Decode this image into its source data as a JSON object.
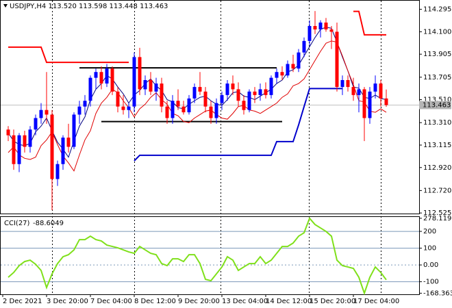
{
  "chart_data": [
    {
      "type": "candlestick",
      "title": "USDJPY,H4  113.520 113.598 113.448 113.463",
      "categories": [
        "2 Dec 2021",
        null,
        null,
        null,
        null,
        null,
        null,
        null,
        "3 Dec 20:00",
        null,
        null,
        null,
        null,
        null,
        null,
        null,
        "7 Dec 04:00",
        null,
        null,
        null,
        null,
        null,
        null,
        null,
        "8 Dec 12:00",
        null,
        null,
        null,
        null,
        null,
        null,
        null,
        "9 Dec 20:00",
        null,
        null,
        null,
        null,
        null,
        null,
        null,
        "13 Dec 04:00",
        null,
        null,
        null,
        null,
        null,
        null,
        null,
        "14 Dec 12:00",
        null,
        null,
        null,
        null,
        null,
        null,
        null,
        "15 Dec 20:00",
        null,
        null,
        null,
        null,
        null,
        null,
        null,
        "17 Dec 04:00",
        null,
        null,
        null,
        null,
        null
      ],
      "open": [
        113.25,
        113.2,
        112.95,
        113.2,
        113.1,
        113.25,
        113.35,
        113.42,
        113.38,
        112.82,
        112.95,
        113.18,
        113.1,
        113.38,
        113.45,
        113.5,
        113.7,
        113.75,
        113.65,
        113.78,
        113.58,
        113.45,
        113.42,
        113.45,
        113.88,
        113.6,
        113.68,
        113.58,
        113.65,
        113.45,
        113.35,
        113.5,
        113.45,
        113.4,
        113.52,
        113.62,
        113.58,
        113.45,
        113.35,
        113.48,
        113.55,
        113.65,
        113.6,
        113.5,
        113.42,
        113.58,
        113.55,
        113.6,
        113.55,
        113.7,
        113.75,
        113.72,
        113.82,
        113.78,
        113.92,
        114.02,
        114.15,
        114.12,
        114.18,
        114.12,
        114.1,
        113.62,
        113.68,
        113.62,
        113.55,
        113.6,
        113.35,
        113.58,
        113.65,
        113.52
      ],
      "high": [
        113.28,
        113.25,
        113.22,
        113.24,
        113.28,
        113.38,
        113.48,
        113.75,
        113.42,
        112.98,
        113.2,
        113.3,
        113.4,
        113.5,
        113.55,
        113.72,
        113.78,
        113.8,
        113.82,
        113.8,
        113.62,
        113.55,
        113.48,
        113.92,
        113.96,
        113.72,
        113.75,
        113.7,
        113.7,
        113.5,
        113.55,
        113.6,
        113.5,
        113.55,
        113.65,
        113.75,
        113.62,
        113.5,
        113.52,
        113.58,
        113.68,
        113.72,
        113.66,
        113.55,
        113.6,
        113.62,
        113.65,
        113.66,
        113.72,
        113.78,
        113.8,
        113.85,
        113.9,
        113.95,
        114.05,
        114.2,
        114.28,
        114.2,
        114.22,
        114.15,
        114.18,
        113.72,
        113.72,
        113.7,
        113.65,
        113.62,
        113.62,
        113.72,
        113.68,
        113.598
      ],
      "low": [
        113.15,
        112.9,
        112.88,
        113.05,
        113.05,
        113.2,
        113.3,
        113.3,
        112.55,
        112.76,
        112.9,
        113.05,
        113.08,
        113.3,
        113.38,
        113.45,
        113.6,
        113.6,
        113.62,
        113.55,
        113.4,
        113.38,
        113.35,
        113.4,
        113.55,
        113.55,
        113.55,
        113.5,
        113.4,
        113.3,
        113.3,
        113.42,
        113.38,
        113.38,
        113.48,
        113.55,
        113.4,
        113.3,
        113.3,
        113.42,
        113.5,
        113.55,
        113.45,
        113.38,
        113.4,
        113.48,
        113.5,
        113.52,
        113.52,
        113.65,
        113.68,
        113.7,
        113.75,
        113.75,
        113.88,
        113.98,
        114.08,
        114.05,
        114.1,
        113.95,
        113.58,
        113.55,
        113.58,
        113.5,
        113.4,
        113.15,
        113.3,
        113.52,
        113.45,
        113.448
      ],
      "close": [
        113.2,
        112.95,
        113.2,
        113.1,
        113.25,
        113.35,
        113.42,
        113.38,
        112.82,
        112.95,
        113.18,
        113.1,
        113.38,
        113.45,
        113.5,
        113.7,
        113.75,
        113.65,
        113.78,
        113.58,
        113.45,
        113.42,
        113.45,
        113.88,
        113.6,
        113.68,
        113.58,
        113.65,
        113.45,
        113.35,
        113.5,
        113.45,
        113.4,
        113.52,
        113.62,
        113.58,
        113.45,
        113.35,
        113.48,
        113.55,
        113.65,
        113.6,
        113.5,
        113.42,
        113.58,
        113.55,
        113.6,
        113.55,
        113.7,
        113.75,
        113.72,
        113.82,
        113.78,
        113.92,
        114.02,
        114.15,
        114.12,
        114.18,
        114.12,
        114.1,
        113.62,
        113.68,
        113.62,
        113.55,
        113.6,
        113.35,
        113.58,
        113.65,
        113.52,
        113.463
      ],
      "up_color": "#0000ff",
      "down_color": "#ff0000",
      "series": [
        {
          "color": "#ff0000",
          "width": 2,
          "values": [
            113.966,
            113.966,
            113.966,
            113.966,
            113.966,
            113.966,
            113.966,
            113.834,
            113.834,
            113.834,
            113.834,
            113.834,
            113.834,
            113.834,
            113.834,
            113.834,
            113.834,
            113.834,
            113.834,
            113.834,
            113.834,
            113.834,
            113.834,
            null,
            null,
            null,
            null,
            null,
            null,
            null,
            null,
            null,
            null,
            null,
            null,
            null,
            null,
            null,
            null,
            null,
            null,
            null,
            null,
            null,
            null,
            null,
            null,
            null,
            null,
            null,
            null,
            null,
            null,
            null,
            null,
            null,
            null,
            null,
            null,
            null,
            null,
            null,
            null,
            114.277,
            114.277,
            114.073,
            114.073,
            114.073,
            114.073,
            114.073
          ]
        },
        {
          "color": "#0000cc",
          "width": 2,
          "values": [
            null,
            null,
            null,
            null,
            null,
            null,
            null,
            null,
            null,
            null,
            null,
            null,
            null,
            null,
            null,
            null,
            null,
            null,
            null,
            null,
            null,
            null,
            null,
            112.978,
            113.026,
            113.026,
            113.026,
            113.026,
            113.026,
            113.026,
            113.026,
            113.026,
            113.026,
            113.026,
            113.026,
            113.026,
            113.026,
            113.026,
            113.026,
            113.026,
            113.026,
            113.026,
            113.026,
            113.026,
            113.026,
            113.026,
            113.026,
            113.026,
            113.026,
            113.145,
            113.145,
            113.145,
            113.145,
            113.29,
            113.45,
            113.606,
            113.606,
            113.606,
            113.606,
            113.606,
            113.606,
            113.606,
            null,
            null,
            null,
            null,
            null,
            null,
            null,
            null
          ]
        },
        {
          "color": "#000080",
          "width": 1,
          "values": [
            113.22,
            113.15,
            113.12,
            113.11,
            113.13,
            113.23,
            113.28,
            113.35,
            113.24,
            113.14,
            113.08,
            113.01,
            113.15,
            113.28,
            113.36,
            113.51,
            113.6,
            113.65,
            113.72,
            113.69,
            113.62,
            113.56,
            113.48,
            113.55,
            113.59,
            113.65,
            113.69,
            113.63,
            113.59,
            113.51,
            113.49,
            113.44,
            113.43,
            113.47,
            113.5,
            113.53,
            113.54,
            113.5,
            113.47,
            113.46,
            113.51,
            113.57,
            113.58,
            113.54,
            113.53,
            113.51,
            113.54,
            113.57,
            113.6,
            113.65,
            113.68,
            113.75,
            113.77,
            113.81,
            113.89,
            113.97,
            114.05,
            114.12,
            114.14,
            114.13,
            114.01,
            113.88,
            113.76,
            113.62,
            113.61,
            113.53,
            113.52,
            113.55,
            113.52,
            113.51
          ]
        },
        {
          "color": "#e00000",
          "width": 1,
          "values": [
            113.05,
            113.1,
            113.03,
            113.0,
            112.99,
            113.01,
            113.11,
            113.16,
            113.23,
            113.12,
            113.02,
            112.96,
            112.89,
            113.03,
            113.16,
            113.24,
            113.39,
            113.48,
            113.53,
            113.6,
            113.57,
            113.5,
            113.44,
            113.36,
            113.43,
            113.47,
            113.53,
            113.57,
            113.51,
            113.47,
            113.39,
            113.37,
            113.32,
            113.31,
            113.35,
            113.38,
            113.41,
            113.42,
            113.38,
            113.35,
            113.34,
            113.39,
            113.45,
            113.46,
            113.42,
            113.41,
            113.39,
            113.42,
            113.45,
            113.48,
            113.53,
            113.56,
            113.63,
            113.65,
            113.69,
            113.77,
            113.85,
            113.93,
            114.0,
            114.02,
            114.01,
            113.89,
            113.76,
            113.64,
            113.5,
            113.49,
            113.41,
            113.4,
            113.43,
            113.4
          ]
        }
      ],
      "levels": [
        {
          "value": 113.786,
          "from": 13,
          "to": 49
        },
        {
          "value": 113.319,
          "from": 17,
          "to": 50
        }
      ],
      "ylim": [
        112.52,
        114.37
      ],
      "yticks": [
        114.295,
        {
          "value": 114.1,
          "label": "114.100"
        },
        113.905,
        113.705,
        {
          "value": 113.51,
          "label": "113.510"
        },
        {
          "value": 113.31,
          "label": "113.310"
        },
        113.115,
        {
          "value": 112.92,
          "label": "112.920"
        },
        {
          "value": 112.72,
          "label": "112.720"
        },
        112.525
      ]
    },
    {
      "type": "line",
      "title": "CCI(27)",
      "series": [
        {
          "color": "#7fe01a",
          "values": [
            -73.5,
            -44.9,
            -4.1,
            20.4,
            28.6,
            4.1,
            -32.7,
            -134.7,
            -53.1,
            8.2,
            49.0,
            61.2,
            89.8,
            151.0,
            151.0,
            171.4,
            151.0,
            142.9,
            118.4,
            110.2,
            102.0,
            89.8,
            77.6,
            69.4,
            110.2,
            89.8,
            69.4,
            61.2,
            8.2,
            -4.1,
            36.7,
            36.7,
            20.4,
            61.2,
            61.2,
            8.2,
            -85.7,
            -93.9,
            -53.1,
            -12.2,
            49.0,
            28.6,
            -32.7,
            -12.2,
            8.2,
            8.2,
            49.0,
            8.2,
            28.6,
            69.4,
            110.2,
            110.2,
            130.6,
            171.4,
            191.8,
            278.1197,
            240.8,
            220.4,
            200.0,
            171.4,
            28.6,
            -4.1,
            -12.2,
            -20.4,
            -73.5,
            -168.3636,
            -73.5,
            -12.2,
            -44.9,
            -88.6049
          ]
        }
      ],
      "levels": [
        200,
        100,
        0,
        -100
      ],
      "ylim": [
        -175,
        290
      ],
      "yticks": [
        278.1197,
        200,
        100,
        {
          "value": 0,
          "label": "0.00"
        },
        -100,
        -168.3636
      ]
    }
  ]
}
